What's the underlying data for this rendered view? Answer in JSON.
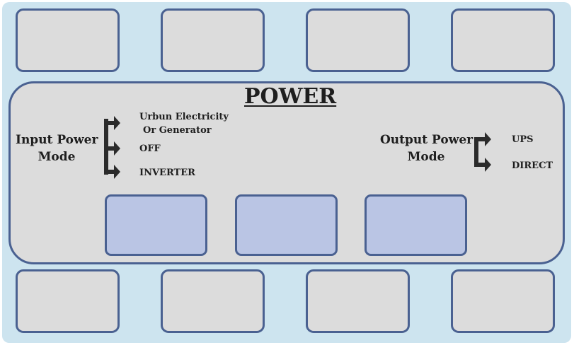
{
  "title": "POWER",
  "input": {
    "label_line1": "Input Power",
    "label_line2": "Mode",
    "options": [
      "Urbun Electricity",
      "Or Generator",
      "OFF",
      "INVERTER"
    ]
  },
  "output": {
    "label_line1": "Output Power",
    "label_line2": "Mode",
    "options": [
      "UPS",
      "DIRECT"
    ]
  },
  "colors": {
    "background": "#cde4ef",
    "slot_fill": "#dcdcdc",
    "border": "#4a6191",
    "button_fill": "#bac5e4",
    "arrow": "#2b2b2b"
  }
}
